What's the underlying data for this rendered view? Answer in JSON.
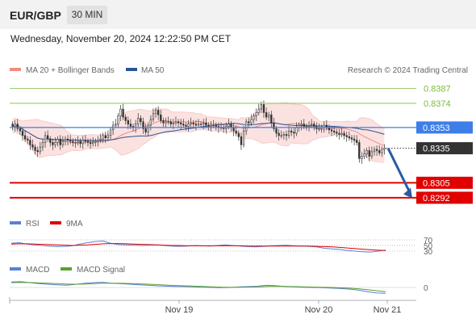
{
  "header": {
    "pair": "EUR/GBP",
    "timeframe": "30 MIN"
  },
  "datetime": "Wednesday, November 20, 2024 12:22:50 PM CET",
  "credit": "Research © 2024 Trading Central",
  "colors": {
    "bollinger": "#f28b82",
    "ma50": "#2a5496",
    "green_level": "#7cbb3c",
    "blue_level": "#3d7ee8",
    "red_level": "#e00000",
    "arrow": "#2a5ba0",
    "rsi": "#5b7fd8",
    "rsi_ma": "#e00000",
    "macd": "#5b7fd8",
    "macd_signal": "#5aa02c"
  },
  "chart_data": [
    {
      "type": "candlestick",
      "legend": [
        "MA 20 + Bollinger Bands",
        "MA 50"
      ],
      "ylim": [
        0.828,
        0.8395
      ],
      "levels": [
        {
          "value": 0.8387,
          "label": "0.8387",
          "style": "green"
        },
        {
          "value": 0.8374,
          "label": "0.8374",
          "style": "green"
        },
        {
          "value": 0.8353,
          "label": "0.8353",
          "style": "blue"
        },
        {
          "value": 0.8335,
          "label": "0.8335",
          "style": "last"
        },
        {
          "value": 0.8305,
          "label": "0.8305",
          "style": "red"
        },
        {
          "value": 0.8292,
          "label": "0.8292",
          "style": "red"
        }
      ],
      "closes": [
        0.8354,
        0.8356,
        0.8352,
        0.835,
        0.8346,
        0.8343,
        0.8342,
        0.8338,
        0.8336,
        0.8333,
        0.8332,
        0.8336,
        0.834,
        0.8346,
        0.8343,
        0.834,
        0.8338,
        0.834,
        0.8343,
        0.8338,
        0.8341,
        0.8343,
        0.8342,
        0.8341,
        0.834,
        0.834,
        0.8341,
        0.8339,
        0.8342,
        0.8341,
        0.834,
        0.8339,
        0.834,
        0.8341,
        0.8342,
        0.8343,
        0.8346,
        0.8344,
        0.8346,
        0.8351,
        0.8355,
        0.8356,
        0.8363,
        0.8369,
        0.8362,
        0.8359,
        0.8356,
        0.8354,
        0.8353,
        0.8356,
        0.8361,
        0.8358,
        0.8352,
        0.8349,
        0.8355,
        0.836,
        0.8365,
        0.8368,
        0.8364,
        0.8359,
        0.8357,
        0.8358,
        0.8358,
        0.8356,
        0.8357,
        0.8358,
        0.8357,
        0.8356,
        0.8355,
        0.8354,
        0.8356,
        0.8357,
        0.8356,
        0.8355,
        0.8356,
        0.8356,
        0.8357,
        0.8355,
        0.8354,
        0.8355,
        0.8355,
        0.8354,
        0.8353,
        0.8353,
        0.8352,
        0.8354,
        0.8356,
        0.8353,
        0.835,
        0.8348,
        0.8345,
        0.8338,
        0.835,
        0.8358,
        0.8357,
        0.836,
        0.8363,
        0.8366,
        0.8369,
        0.8373,
        0.8366,
        0.8362,
        0.8364,
        0.8357,
        0.8352,
        0.8348,
        0.8346,
        0.8346,
        0.8347,
        0.8346,
        0.835,
        0.8349,
        0.8348,
        0.8353,
        0.8355,
        0.8356,
        0.8354,
        0.8354,
        0.8355,
        0.8356,
        0.8354,
        0.8352,
        0.8352,
        0.8353,
        0.8355,
        0.8353,
        0.8351,
        0.835,
        0.8349,
        0.8348,
        0.8347,
        0.8348,
        0.8346,
        0.8345,
        0.8344,
        0.8343,
        0.8342,
        0.834,
        0.8326,
        0.8328,
        0.833,
        0.8333,
        0.8328,
        0.8332,
        0.8334,
        0.8333,
        0.8331,
        0.8334,
        0.8335
      ],
      "target_arrow": {
        "from": 0.8335,
        "to": 0.83
      }
    },
    {
      "type": "line",
      "legend": [
        "RSI",
        "9MA"
      ],
      "y_ticks": [
        "70",
        "50",
        "30"
      ],
      "ylim": [
        10,
        90
      ],
      "series": [
        {
          "name": "RSI",
          "values": [
            58,
            60,
            55,
            52,
            50,
            48,
            46,
            47,
            49,
            55,
            60,
            64,
            66,
            58,
            53,
            52,
            51,
            50,
            51,
            52,
            50,
            48,
            47,
            48,
            50,
            49,
            48,
            50,
            52,
            50,
            48,
            46,
            45,
            47,
            49,
            50,
            51,
            49,
            48,
            47,
            45,
            40,
            38,
            36,
            32,
            30,
            28,
            27,
            30,
            34
          ]
        },
        {
          "name": "9MA",
          "values": [
            55,
            56,
            56,
            55,
            54,
            53,
            52,
            51,
            50,
            51,
            52,
            54,
            56,
            57,
            57,
            56,
            55,
            54,
            53,
            52,
            51,
            50,
            50,
            49,
            49,
            49,
            49,
            49,
            49,
            49,
            49,
            48,
            48,
            48,
            48,
            48,
            48,
            48,
            48,
            48,
            47,
            46,
            45,
            43,
            41,
            39,
            37,
            35,
            33,
            32
          ]
        }
      ]
    },
    {
      "type": "line",
      "legend": [
        "MACD",
        "MACD Signal"
      ],
      "y_ticks": [
        "0"
      ],
      "ylim": [
        -1.2,
        1.2
      ],
      "series": [
        {
          "name": "MACD",
          "values": [
            0.5,
            0.55,
            0.45,
            0.35,
            0.3,
            0.25,
            0.2,
            0.28,
            0.38,
            0.45,
            0.48,
            0.4,
            0.35,
            0.3,
            0.25,
            0.2,
            0.15,
            0.12,
            0.1,
            0.08,
            0.05,
            0.02,
            0.0,
            -0.02,
            0.0,
            0.05,
            0.08,
            0.12,
            0.2,
            0.16,
            0.1,
            0.05,
            0.02,
            0.0,
            -0.02,
            -0.05,
            -0.1,
            -0.15,
            -0.25,
            -0.4,
            -0.5,
            -0.55
          ]
        },
        {
          "name": "MACD Signal",
          "values": [
            0.45,
            0.47,
            0.46,
            0.43,
            0.4,
            0.36,
            0.32,
            0.3,
            0.32,
            0.35,
            0.39,
            0.4,
            0.39,
            0.37,
            0.34,
            0.3,
            0.26,
            0.22,
            0.18,
            0.15,
            0.12,
            0.09,
            0.06,
            0.03,
            0.02,
            0.02,
            0.04,
            0.06,
            0.09,
            0.11,
            0.1,
            0.08,
            0.06,
            0.04,
            0.02,
            0.0,
            -0.03,
            -0.07,
            -0.12,
            -0.2,
            -0.3,
            -0.4
          ]
        }
      ]
    }
  ],
  "xaxis": {
    "labels": [
      "Nov 19",
      "Nov 20",
      "Nov 21"
    ]
  }
}
